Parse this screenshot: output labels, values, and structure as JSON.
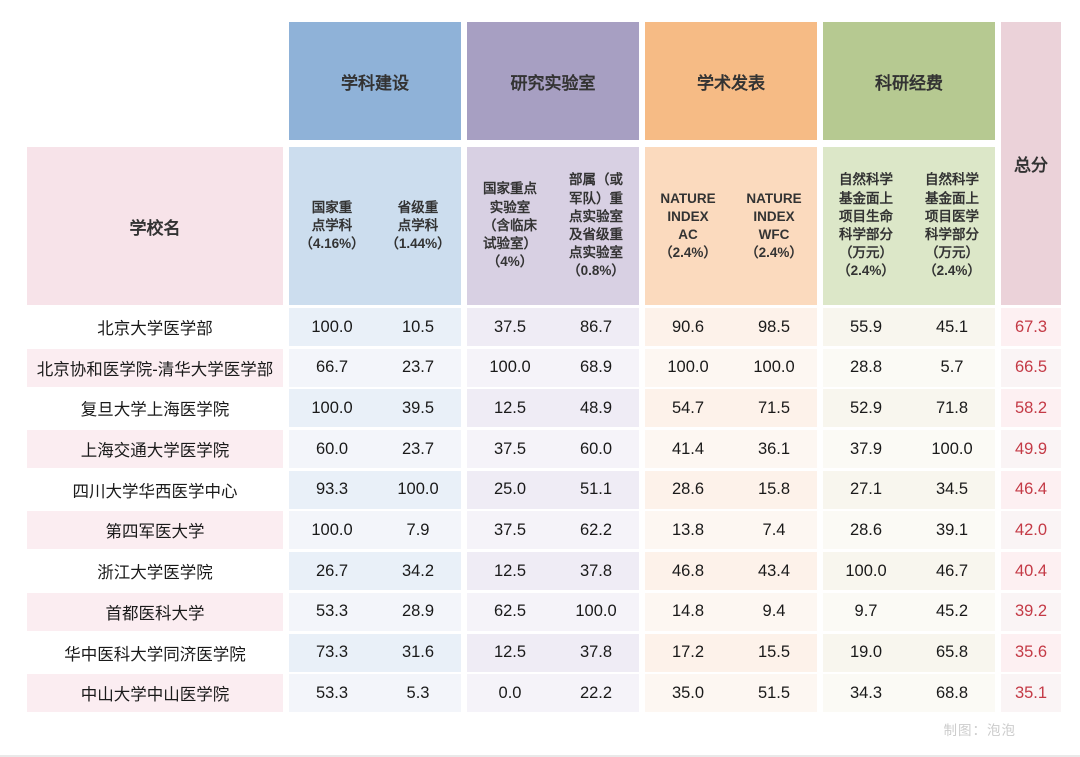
{
  "header": {
    "school_col": "学校名",
    "total_col": "总分",
    "groups": [
      {
        "label": "学科建设",
        "color": "#8fb2d8",
        "sub_color": "#ccddee",
        "subs": [
          "国家重\n点学科\n（4.16%）",
          "省级重\n点学科\n（1.44%）"
        ]
      },
      {
        "label": "研究实验室",
        "color": "#a79fc2",
        "sub_color": "#d8d0e3",
        "subs": [
          "国家重点\n实验室\n（含临床\n试验室）\n（4%）",
          "部属（或\n军队）重\n点实验室\n及省级重\n点实验室\n（0.8%）"
        ]
      },
      {
        "label": "学术发表",
        "color": "#f6bb85",
        "sub_color": "#fbdabe",
        "subs": [
          "NATURE\nINDEX\nAC\n（2.4%）",
          "NATURE\nINDEX\nWFC\n（2.4%）"
        ]
      },
      {
        "label": "科研经费",
        "color": "#b6c991",
        "sub_color": "#dce7c8",
        "subs": [
          "自然科学\n基金面上\n项目生命\n科学部分\n（万元）\n（2.4%）",
          "自然科学\n基金面上\n项目医学\n科学部分\n（万元）\n（2.4%）"
        ]
      }
    ],
    "total_color": "#ebd2d9",
    "school_header_color": "#f7e3e9",
    "total_value_color": "#c43a46"
  },
  "rows": [
    {
      "school": "北京大学医学部",
      "values": [
        "100.0",
        "10.5",
        "37.5",
        "86.7",
        "90.6",
        "98.5",
        "55.9",
        "45.1"
      ],
      "total": "67.3"
    },
    {
      "school": "北京协和医学院-清华大学医学部",
      "values": [
        "66.7",
        "23.7",
        "100.0",
        "68.9",
        "100.0",
        "100.0",
        "28.8",
        "5.7"
      ],
      "total": "66.5"
    },
    {
      "school": "复旦大学上海医学院",
      "values": [
        "100.0",
        "39.5",
        "12.5",
        "48.9",
        "54.7",
        "71.5",
        "52.9",
        "71.8"
      ],
      "total": "58.2"
    },
    {
      "school": "上海交通大学医学院",
      "values": [
        "60.0",
        "23.7",
        "37.5",
        "60.0",
        "41.4",
        "36.1",
        "37.9",
        "100.0"
      ],
      "total": "49.9"
    },
    {
      "school": "四川大学华西医学中心",
      "values": [
        "93.3",
        "100.0",
        "25.0",
        "51.1",
        "28.6",
        "15.8",
        "27.1",
        "34.5"
      ],
      "total": "46.4"
    },
    {
      "school": "第四军医大学",
      "values": [
        "100.0",
        "7.9",
        "37.5",
        "62.2",
        "13.8",
        "7.4",
        "28.6",
        "39.1"
      ],
      "total": "42.0"
    },
    {
      "school": "浙江大学医学院",
      "values": [
        "26.7",
        "34.2",
        "12.5",
        "37.8",
        "46.8",
        "43.4",
        "100.0",
        "46.7"
      ],
      "total": "40.4"
    },
    {
      "school": "首都医科大学",
      "values": [
        "53.3",
        "28.9",
        "62.5",
        "100.0",
        "14.8",
        "9.4",
        "9.7",
        "45.2"
      ],
      "total": "39.2"
    },
    {
      "school": "华中医科大学同济医学院",
      "values": [
        "73.3",
        "31.6",
        "12.5",
        "37.8",
        "17.2",
        "15.5",
        "19.0",
        "65.8"
      ],
      "total": "35.6"
    },
    {
      "school": "中山大学中山医学院",
      "values": [
        "53.3",
        "5.3",
        "0.0",
        "22.2",
        "35.0",
        "51.5",
        "34.3",
        "68.8"
      ],
      "total": "35.1"
    }
  ],
  "footer": {
    "credit": "制图：泡泡"
  }
}
